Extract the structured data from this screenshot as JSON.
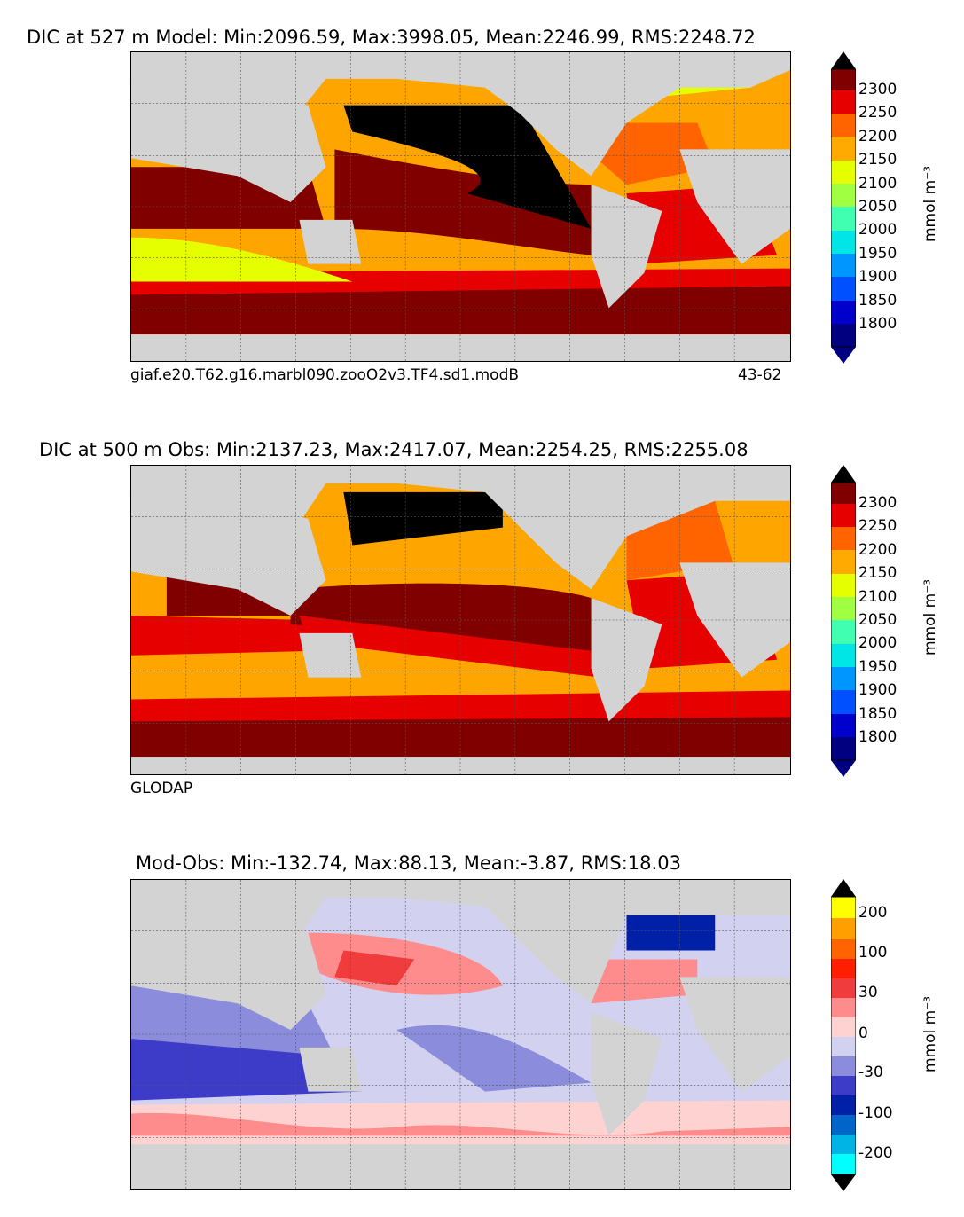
{
  "panels": [
    {
      "title": "DIC at 527 m Model: Min:2096.59, Max:3998.05, Mean:2246.99, RMS:2248.72",
      "caption_left": "giaf.e20.T62.g16.marbl090.zooO2v3.TF4.sd1.modB",
      "caption_right": "43-62",
      "colorbar_unit": "mmol m⁻³",
      "colorbar_ticks": [
        "2300",
        "2250",
        "2200",
        "2150",
        "2100",
        "2050",
        "2000",
        "1950",
        "1900",
        "1850",
        "1800"
      ]
    },
    {
      "title": "DIC at 500 m Obs: Min:2137.23, Max:2417.07, Mean:2254.25, RMS:2255.08",
      "caption_left": "GLODAP",
      "caption_right": "",
      "colorbar_unit": "mmol m⁻³",
      "colorbar_ticks": [
        "2300",
        "2250",
        "2200",
        "2150",
        "2100",
        "2050",
        "2000",
        "1950",
        "1900",
        "1850",
        "1800"
      ]
    },
    {
      "title": "Mod-Obs: Min:-132.74, Max:88.13, Mean:-3.87, RMS:18.03",
      "caption_left": "",
      "caption_right": "",
      "colorbar_unit": "mmol m⁻³",
      "colorbar_ticks": [
        "200",
        "100",
        "30",
        "0",
        "-30",
        "-100",
        "-200"
      ]
    }
  ],
  "colors": {
    "land": "#d3d3d3",
    "abs_scale": [
      "#000080",
      "#0000cd",
      "#0000ff",
      "#0050ff",
      "#0096ff",
      "#00e6e6",
      "#40ffb0",
      "#a0ff40",
      "#e6ff00",
      "#ffaa00",
      "#ff6400",
      "#e60000",
      "#800000"
    ],
    "abs_over": "#000000",
    "diff_scale": [
      "#00ffff",
      "#00b4e6",
      "#0064c8",
      "#0020a8",
      "#3c3cc8",
      "#8c8cdc",
      "#d2d2f0",
      "#ffd2d2",
      "#ff8c8c",
      "#f03c3c",
      "#ff1e00",
      "#ffa000",
      "#ffff00"
    ]
  }
}
